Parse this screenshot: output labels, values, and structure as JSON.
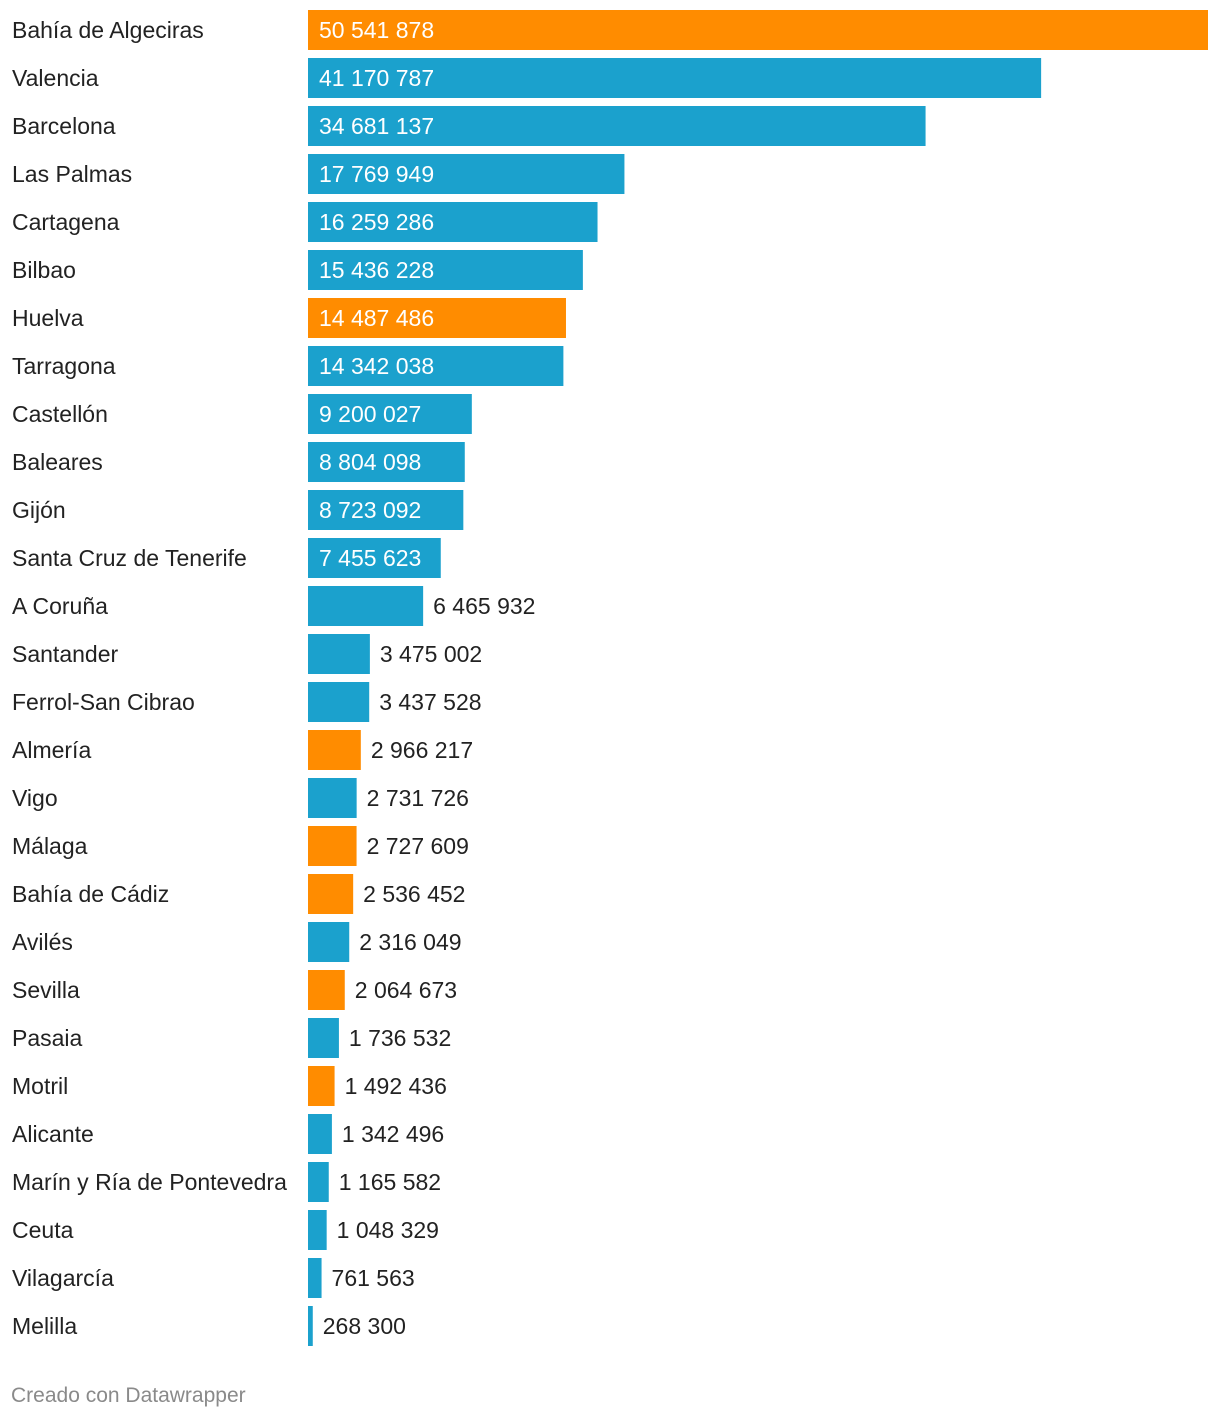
{
  "chart_data": {
    "type": "bar",
    "orientation": "horizontal",
    "title": "",
    "xlabel": "",
    "ylabel": "",
    "grid": false,
    "xlim": [
      0,
      50541878
    ],
    "colors": {
      "default": "#1ba1cd",
      "highlight": "#ff8c00",
      "label_inside": "#ffffff",
      "label_outside": "#222222"
    },
    "categories": [
      "Bahía de Algeciras",
      "Valencia",
      "Barcelona",
      "Las Palmas",
      "Cartagena",
      "Bilbao",
      "Huelva",
      "Tarragona",
      "Castellón",
      "Baleares",
      "Gijón",
      "Santa Cruz de Tenerife",
      "A Coruña",
      "Santander",
      "Ferrol-San Cibrao",
      "Almería",
      "Vigo",
      "Málaga",
      "Bahía de Cádiz",
      "Avilés",
      "Sevilla",
      "Pasaia",
      "Motril",
      "Alicante",
      "Marín y Ría de Pontevedra",
      "Ceuta",
      "Vilagarcía",
      "Melilla"
    ],
    "values": [
      50541878,
      41170787,
      34681137,
      17769949,
      16259286,
      15436228,
      14487486,
      14342038,
      9200027,
      8804098,
      8723092,
      7455623,
      6465932,
      3475002,
      3437528,
      2966217,
      2731726,
      2727609,
      2536452,
      2316049,
      2064673,
      1736532,
      1492436,
      1342496,
      1165582,
      1048329,
      761563,
      268300
    ],
    "value_labels": [
      "50 541 878",
      "41 170 787",
      "34 681 137",
      "17 769 949",
      "16 259 286",
      "15 436 228",
      "14 487 486",
      "14 342 038",
      "9 200 027",
      "8 804 098",
      "8 723 092",
      "7 455 623",
      "6 465 932",
      "3 475 002",
      "3 437 528",
      "2 966 217",
      "2 731 726",
      "2 727 609",
      "2 536 452",
      "2 316 049",
      "2 064 673",
      "1 736 532",
      "1 492 436",
      "1 342 496",
      "1 165 582",
      "1 048 329",
      "761 563",
      "268 300"
    ],
    "highlighted": [
      true,
      false,
      false,
      false,
      false,
      false,
      true,
      false,
      false,
      false,
      false,
      false,
      false,
      false,
      false,
      true,
      false,
      true,
      true,
      false,
      true,
      false,
      true,
      false,
      false,
      false,
      false,
      false
    ]
  },
  "footer": {
    "credit": "Creado con Datawrapper"
  }
}
